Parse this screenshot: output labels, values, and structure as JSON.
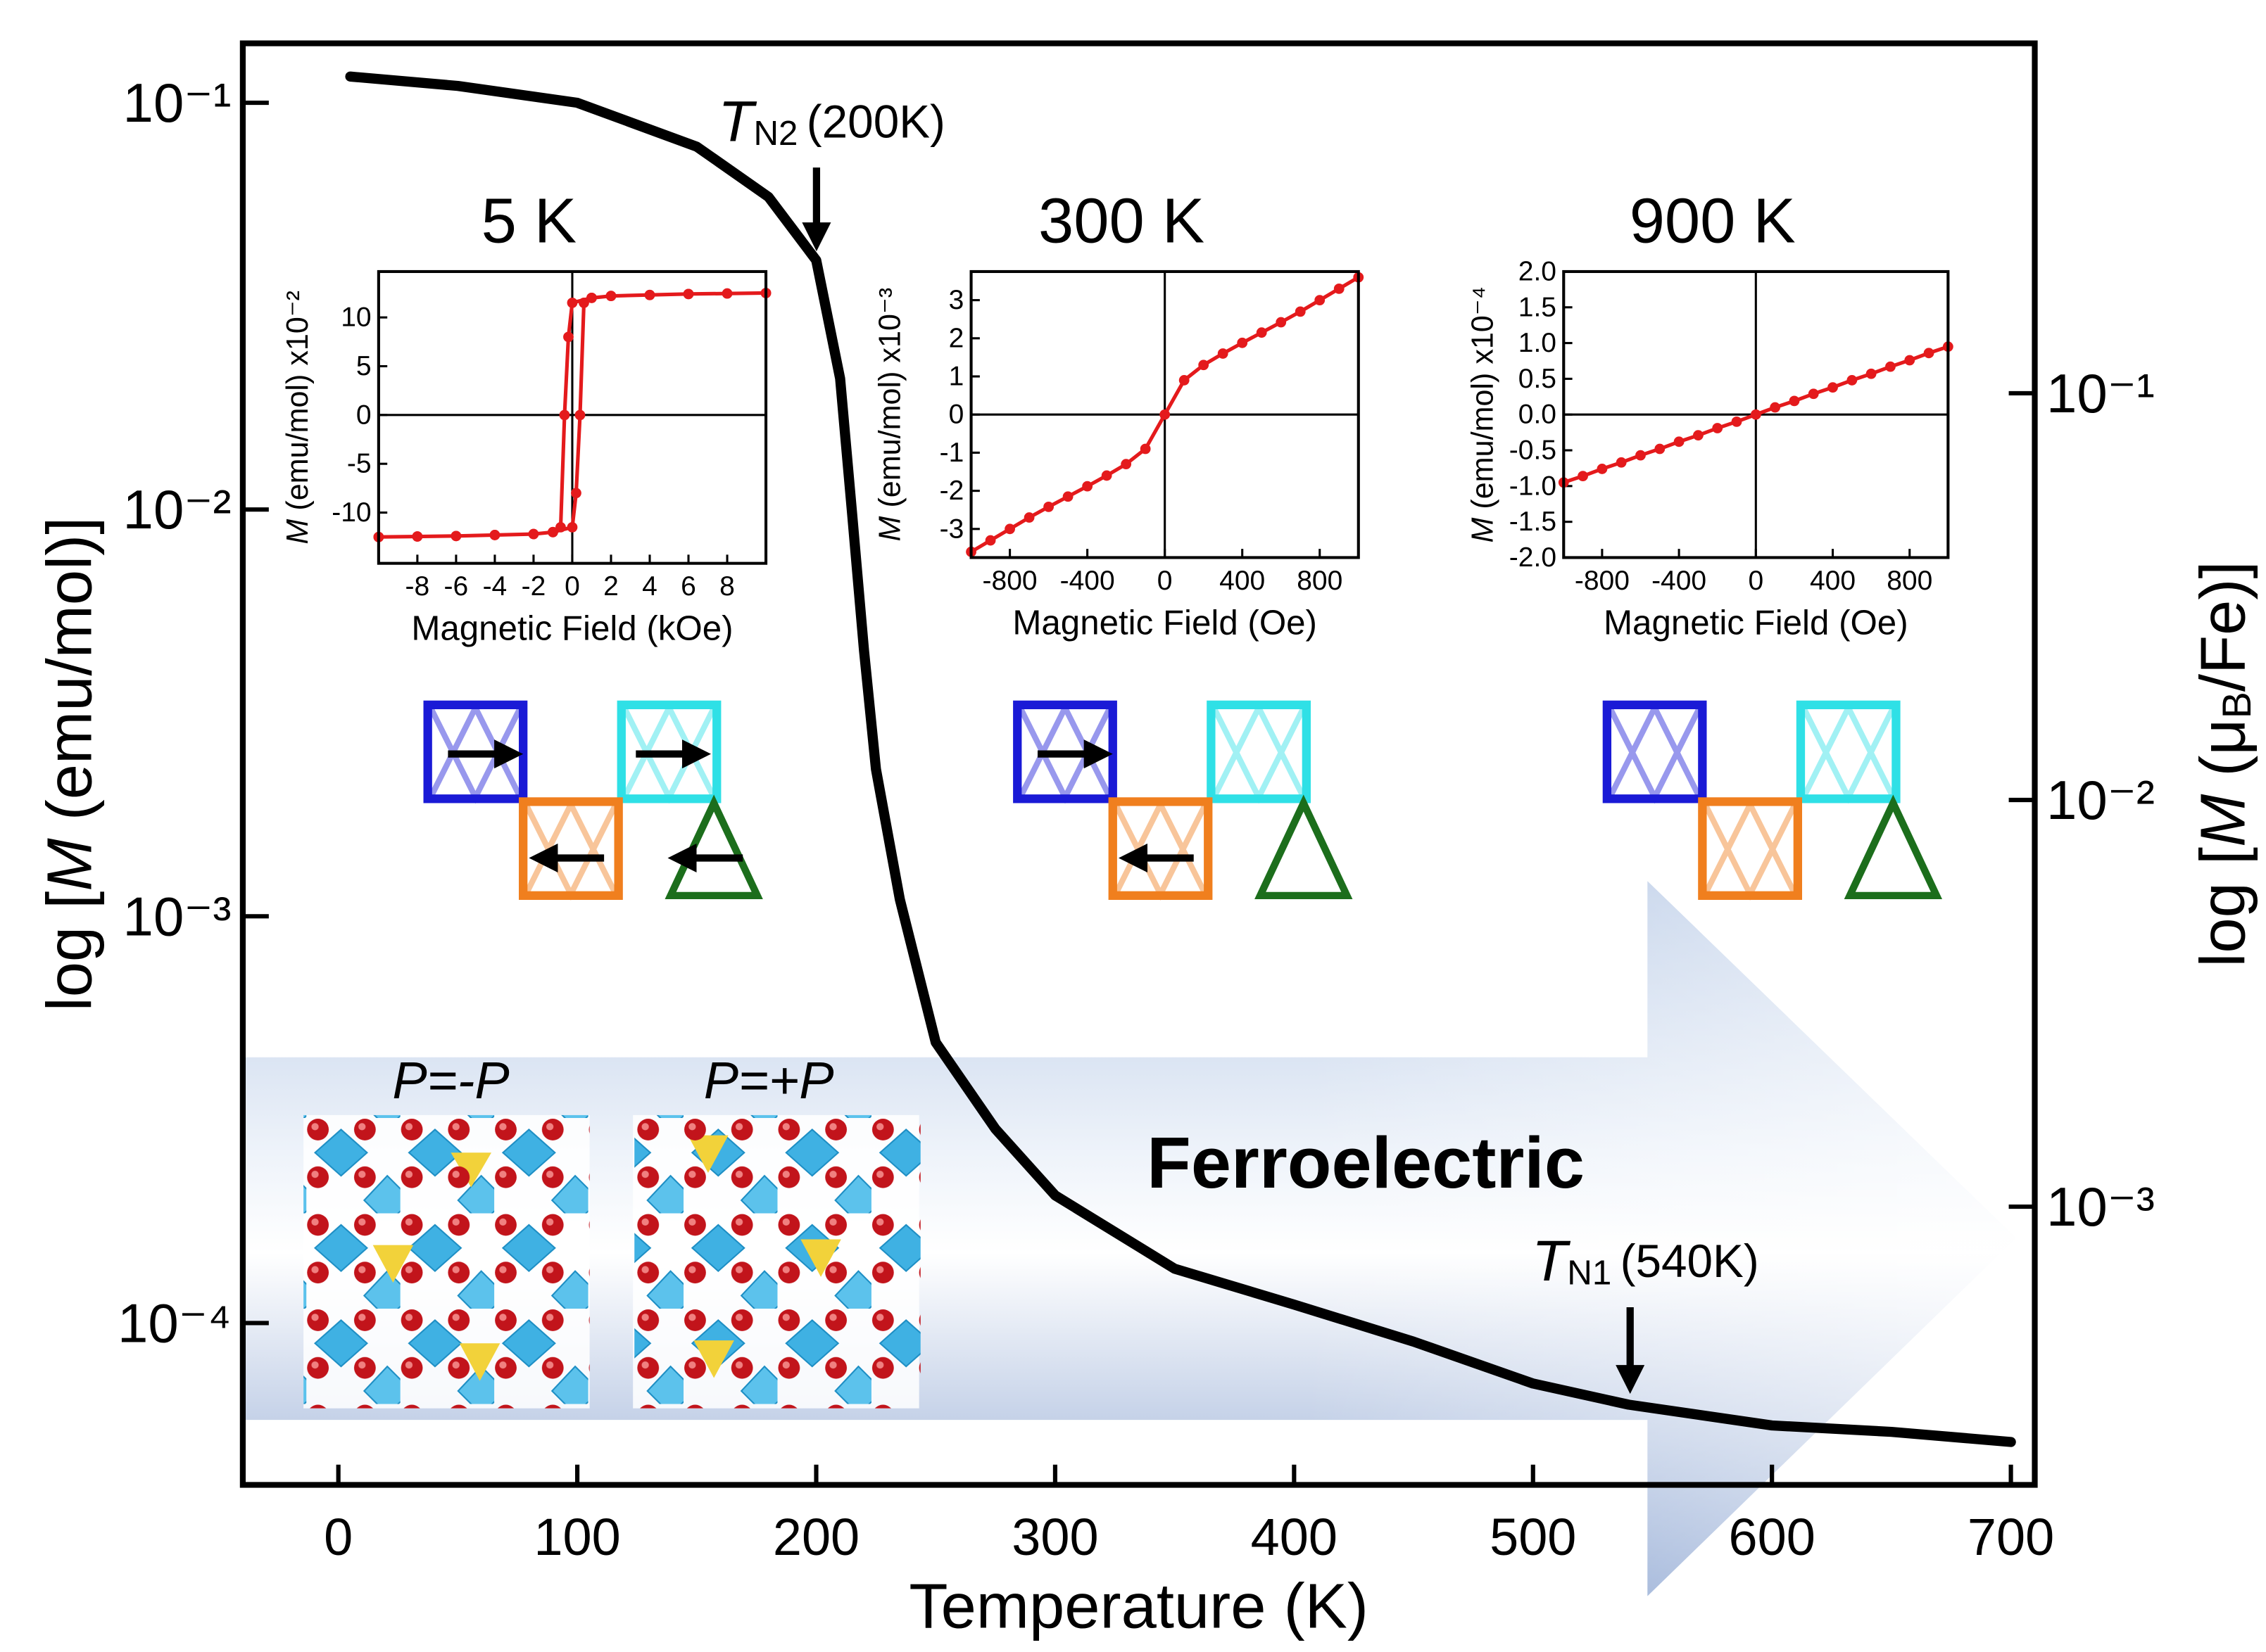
{
  "chart_data": [
    {
      "type": "line",
      "xlabel": "Temperature (K)",
      "ylabel": {
        "prefix": "log [",
        "symbol": "M",
        "suffix": " (emu/mol)]"
      },
      "y2label": {
        "prefix": "log [",
        "symbol": "M",
        "middle": " (μ",
        "sub": "B",
        "suffix": "/Fe)]"
      },
      "x": [
        5,
        50,
        100,
        150,
        180,
        200,
        210,
        215,
        220,
        225,
        235,
        250,
        275,
        300,
        350,
        400,
        450,
        500,
        540,
        600,
        650,
        700
      ],
      "series": [
        {
          "color": "#000000",
          "values": [
            0.116,
            0.11,
            0.1,
            0.078,
            0.0587,
            0.041,
            0.021,
            0.0098,
            0.0045,
            0.0023,
            0.0011,
            0.00049,
            0.0003,
            0.000206,
            0.000136,
            0.000111,
            9e-05,
            7.1e-05,
            6.3e-05,
            5.6e-05,
            5.4e-05,
            5.1e-05
          ]
        }
      ],
      "xlim": [
        -40,
        710
      ],
      "xticks": [
        0,
        100,
        200,
        300,
        400,
        500,
        600,
        700
      ],
      "yscale": "log",
      "ylim": [
        4e-05,
        0.14
      ],
      "yticks": [
        {
          "value": 0.0001,
          "label": "10⁻⁴"
        },
        {
          "value": 0.001,
          "label": "10⁻³"
        },
        {
          "value": 0.01,
          "label": "10⁻²"
        },
        {
          "value": 0.1,
          "label": "10⁻¹"
        }
      ],
      "y2scale": "log",
      "y2lim": [
        0.000207,
        0.725
      ],
      "y2ticks": [
        {
          "value": 0.001,
          "label": "10⁻³"
        },
        {
          "value": 0.01,
          "label": "10⁻²"
        },
        {
          "value": 0.1,
          "label": "10⁻¹"
        }
      ],
      "annotations": [
        {
          "symbol": "T",
          "subscript": "N2",
          "text": "(200K)"
        },
        {
          "symbol": "T",
          "subscript": "N1",
          "text": "(540K)"
        },
        {
          "text": "Ferroelectric",
          "color": "#f7b500"
        },
        {
          "text": "P=-P"
        },
        {
          "text": "P=+P"
        }
      ]
    },
    {
      "type": "line",
      "markers": true,
      "zero_lines": true,
      "title": "5 K",
      "xlabel": "Magnetic Field (kOe)",
      "ylabel": {
        "symbol": "M",
        "suffix": " (emu/mol) x10⁻²"
      },
      "x": [
        -10,
        -8,
        -6,
        -4,
        -2,
        -1,
        0,
        0.2,
        0.4,
        0.6,
        1,
        2,
        4,
        6,
        8,
        10,
        10,
        8,
        6,
        4,
        2,
        1,
        0,
        -0.2,
        -0.4,
        -0.6,
        -1,
        -2,
        -4,
        -6,
        -8,
        -10
      ],
      "series": [
        {
          "color": "#e41a1c",
          "values": [
            -12.5,
            -12.45,
            -12.4,
            -12.3,
            -12.2,
            -12,
            -11.5,
            -8,
            0,
            11.5,
            12,
            12.2,
            12.3,
            12.4,
            12.45,
            12.5,
            12.5,
            12.45,
            12.4,
            12.3,
            12.2,
            12,
            11.5,
            8,
            0,
            -11.5,
            -12,
            -12.2,
            -12.3,
            -12.4,
            -12.45,
            -12.5
          ]
        }
      ],
      "xlim": [
        -10,
        10
      ],
      "xticks": [
        -8,
        -6,
        -4,
        -2,
        0,
        2,
        4,
        6,
        8
      ],
      "ylim": [
        -15.2,
        14.7
      ],
      "yticks": [
        -10,
        -5,
        0,
        5,
        10
      ]
    },
    {
      "type": "line",
      "markers": true,
      "zero_lines": true,
      "title": "300 K",
      "xlabel": "Magnetic Field (Oe)",
      "ylabel": {
        "symbol": "M",
        "suffix": " (emu/mol) x10⁻³"
      },
      "x": [
        -1000,
        -900,
        -800,
        -700,
        -600,
        -500,
        -400,
        -300,
        -200,
        -100,
        0,
        100,
        200,
        300,
        400,
        500,
        600,
        700,
        800,
        900,
        1000
      ],
      "series": [
        {
          "color": "#e41a1c",
          "values": [
            -3.6,
            -3.3,
            -3,
            -2.7,
            -2.42,
            -2.15,
            -1.88,
            -1.6,
            -1.3,
            -0.9,
            0,
            0.9,
            1.3,
            1.6,
            1.88,
            2.15,
            2.42,
            2.7,
            3,
            3.3,
            3.6
          ]
        }
      ],
      "xlim": [
        -1000,
        1000
      ],
      "xticks": [
        -800,
        -400,
        0,
        400,
        800
      ],
      "ylim": [
        -3.75,
        3.75
      ],
      "yticks": [
        -3,
        -2,
        -1,
        0,
        1,
        2,
        3
      ]
    },
    {
      "type": "line",
      "markers": true,
      "zero_lines": true,
      "title": "900 K",
      "xlabel": "Magnetic Field (Oe)",
      "ylabel": {
        "symbol": "M",
        "suffix": " (emu/mol) x10⁻⁴"
      },
      "x": [
        -1000,
        -900,
        -800,
        -700,
        -600,
        -500,
        -400,
        -300,
        -200,
        -100,
        0,
        100,
        200,
        300,
        400,
        500,
        600,
        700,
        800,
        900,
        1000
      ],
      "series": [
        {
          "color": "#e41a1c",
          "values": [
            -0.95,
            -0.86,
            -0.76,
            -0.67,
            -0.57,
            -0.48,
            -0.38,
            -0.29,
            -0.19,
            -0.1,
            0,
            0.1,
            0.19,
            0.29,
            0.38,
            0.48,
            0.57,
            0.67,
            0.76,
            0.86,
            0.95
          ]
        }
      ],
      "xlim": [
        -1000,
        1000
      ],
      "xticks": [
        -800,
        -400,
        0,
        400,
        800
      ],
      "ylim": [
        -2,
        2
      ],
      "yticks": [
        {
          "value": -2,
          "label": "-2.0"
        },
        -1.5,
        {
          "value": -1,
          "label": "-1.0"
        },
        -0.5,
        {
          "value": 0,
          "label": "0.0"
        },
        0.5,
        {
          "value": 1,
          "label": "1.0"
        },
        1.5,
        {
          "value": 2,
          "label": "2.0"
        }
      ]
    }
  ]
}
